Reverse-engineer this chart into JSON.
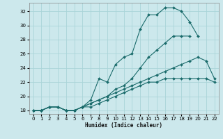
{
  "xlabel": "Humidex (Indice chaleur)",
  "ylabel": "",
  "xlim": [
    -0.5,
    22.5
  ],
  "ylim": [
    17.5,
    33.2
  ],
  "xticks": [
    0,
    1,
    2,
    3,
    4,
    5,
    6,
    7,
    8,
    9,
    10,
    11,
    12,
    13,
    14,
    15,
    16,
    17,
    18,
    19,
    20,
    21,
    22
  ],
  "yticks": [
    18,
    20,
    22,
    24,
    26,
    28,
    30,
    32
  ],
  "background_color": "#cce8ec",
  "grid_color": "#aad4d8",
  "line_color": "#1a6b6b",
  "curves": [
    {
      "x": [
        0,
        1,
        2,
        3,
        4,
        5,
        6,
        7,
        8,
        9,
        10,
        11,
        12,
        13,
        14,
        15,
        16,
        17,
        18,
        19,
        20
      ],
      "y": [
        18,
        18,
        18.5,
        18.5,
        18,
        18,
        18.5,
        19.5,
        22.5,
        22,
        24.5,
        25.5,
        26,
        29.5,
        31.5,
        31.5,
        32.5,
        32.5,
        32,
        30.5,
        28.5
      ]
    },
    {
      "x": [
        0,
        1,
        2,
        3,
        4,
        5,
        6,
        7,
        8,
        9,
        10,
        11,
        12,
        13,
        14,
        15,
        16,
        17,
        18,
        19
      ],
      "y": [
        18,
        18,
        18.5,
        18.5,
        18,
        18,
        18.5,
        19,
        19.5,
        20,
        21,
        21.5,
        22.5,
        24,
        25.5,
        26.5,
        27.5,
        28.5,
        28.5,
        28.5
      ]
    },
    {
      "x": [
        0,
        1,
        2,
        3,
        4,
        5,
        6,
        7,
        8,
        9,
        10,
        11,
        12,
        13,
        14,
        15,
        16,
        17,
        18,
        19,
        20,
        21,
        22
      ],
      "y": [
        18,
        18,
        18.5,
        18.5,
        18,
        18,
        18.5,
        19,
        19.5,
        20,
        20.5,
        21,
        21.5,
        22,
        22.5,
        23,
        23.5,
        24,
        24.5,
        25,
        25.5,
        25,
        22.5
      ]
    },
    {
      "x": [
        0,
        1,
        2,
        3,
        4,
        5,
        6,
        7,
        8,
        9,
        10,
        11,
        12,
        13,
        14,
        15,
        16,
        17,
        18,
        19,
        20,
        21,
        22
      ],
      "y": [
        18,
        18,
        18.5,
        18.5,
        18,
        18,
        18.5,
        18.5,
        19,
        19.5,
        20,
        20.5,
        21,
        21.5,
        22,
        22,
        22.5,
        22.5,
        22.5,
        22.5,
        22.5,
        22.5,
        22
      ]
    }
  ]
}
